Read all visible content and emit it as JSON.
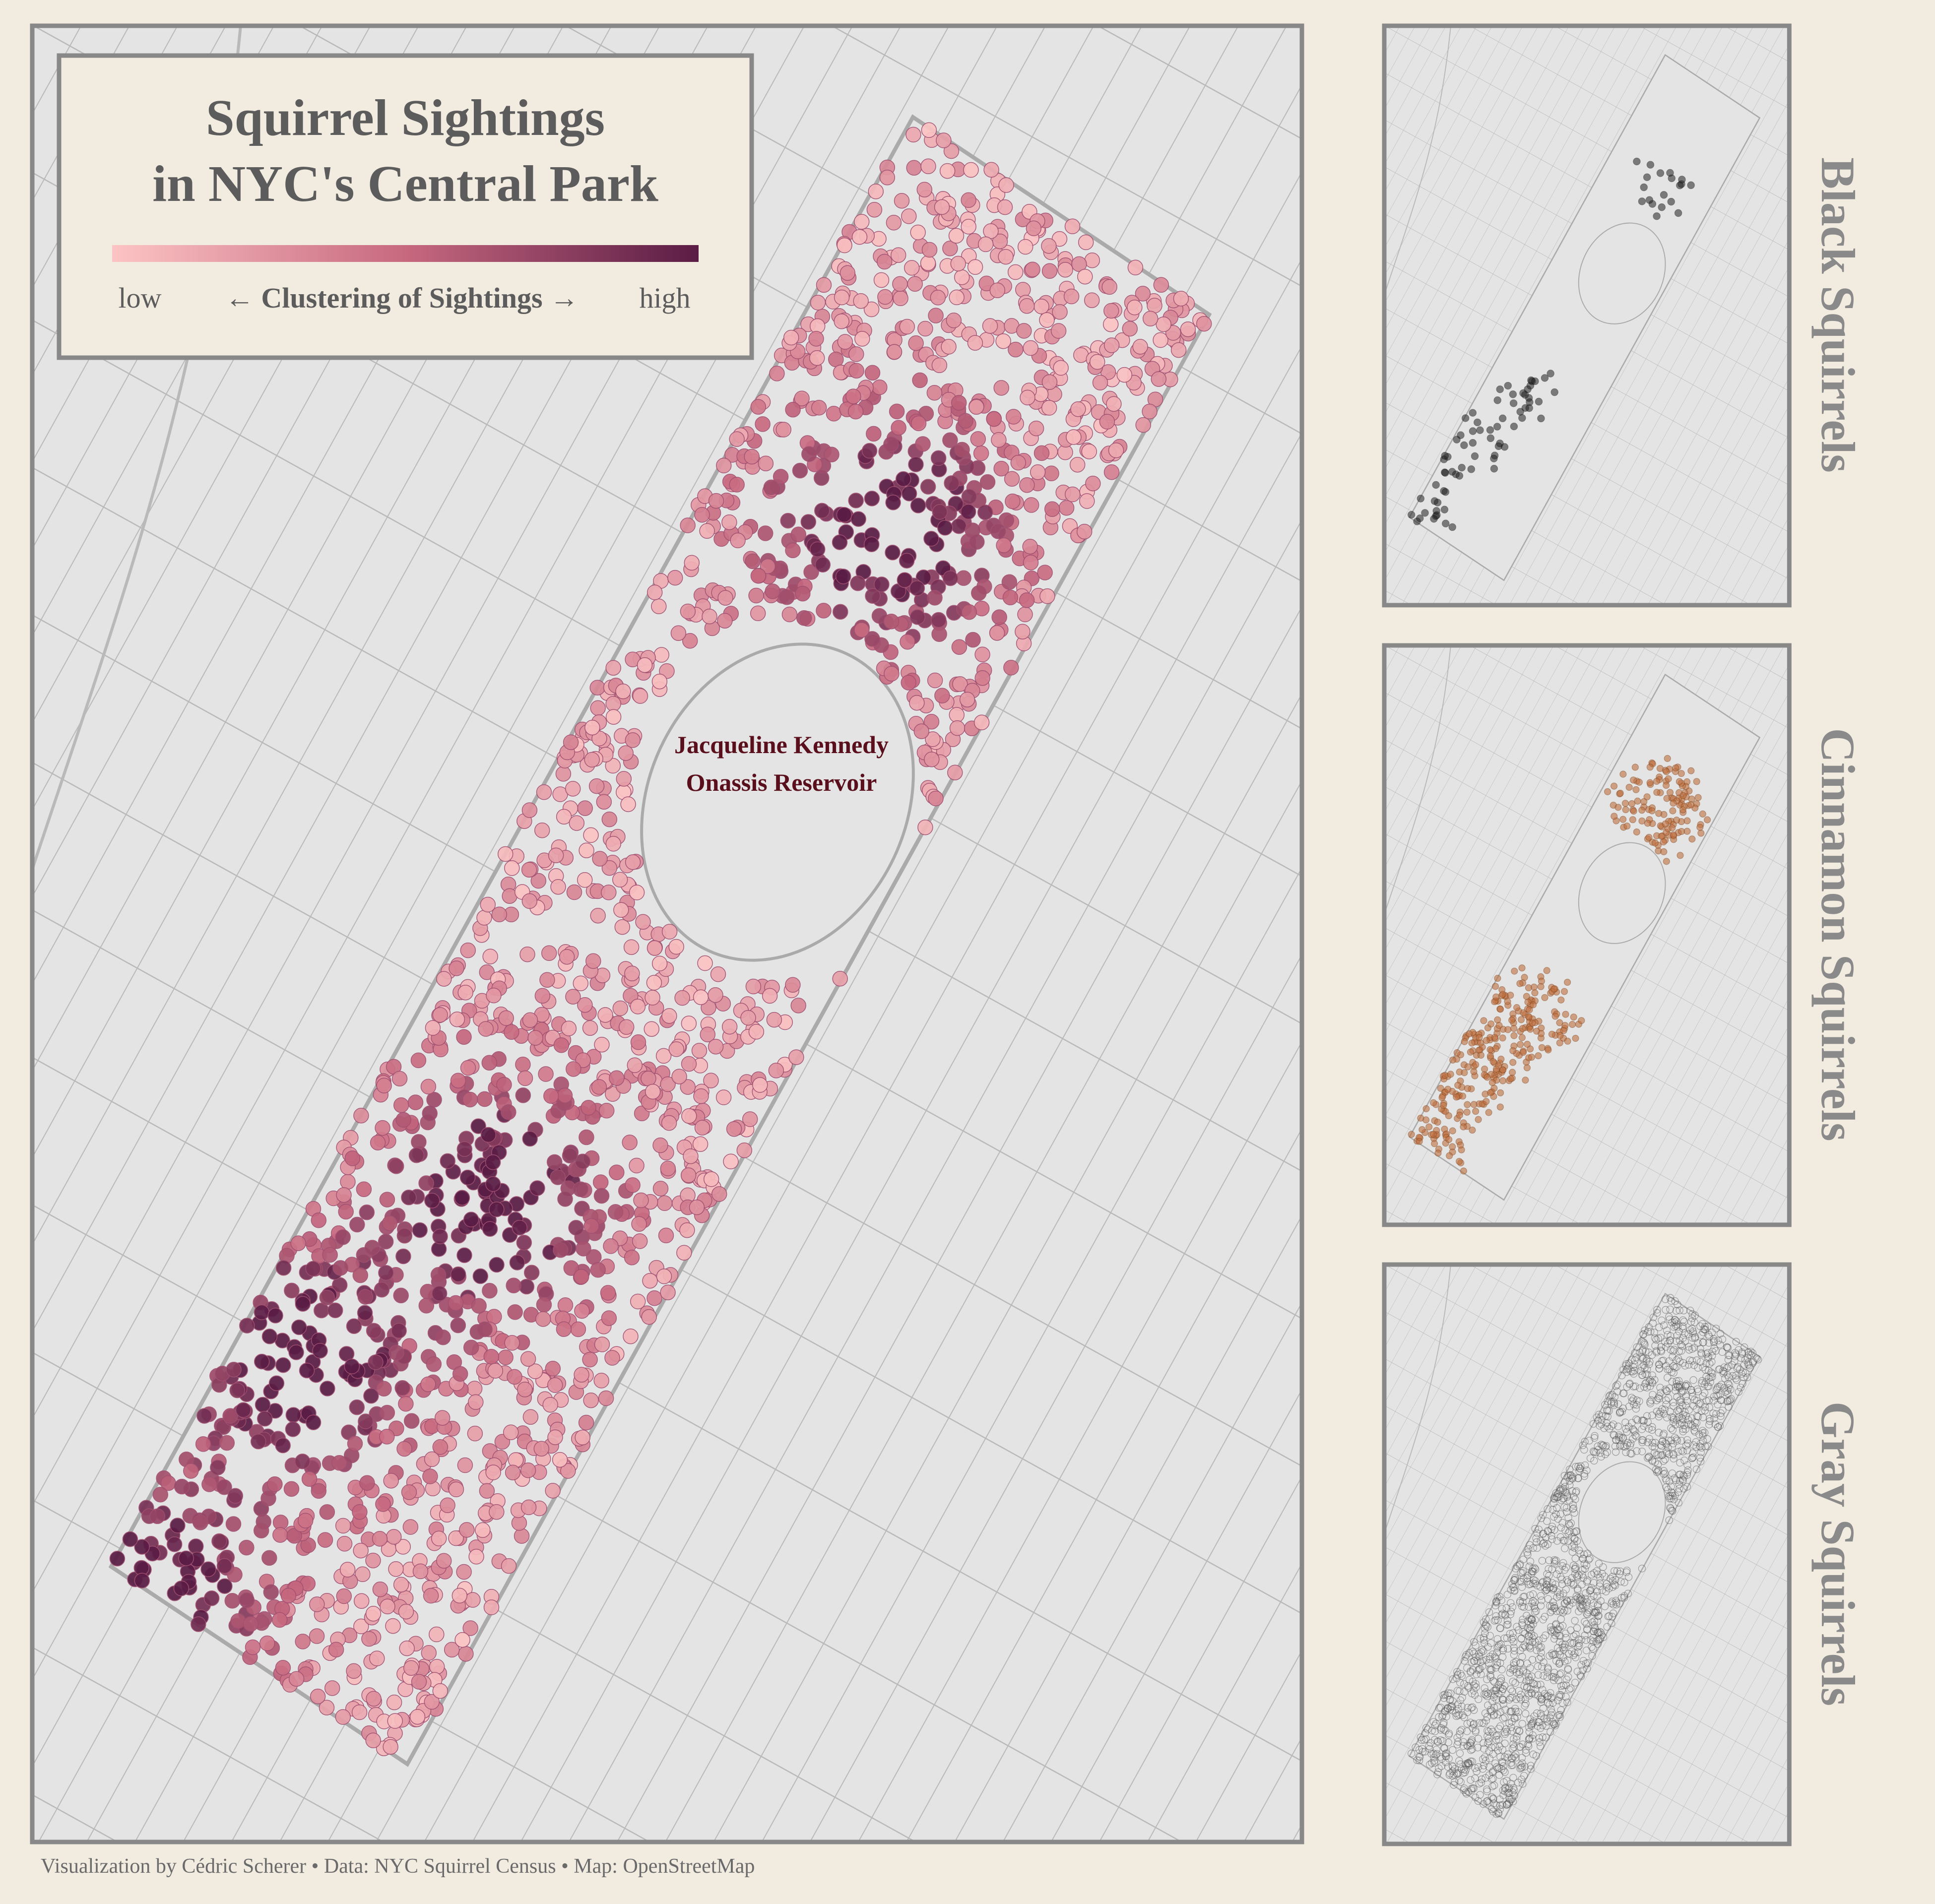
{
  "header": {
    "title": [
      "Squirrel Sightings",
      "in NYC's Central Park"
    ]
  },
  "legend": {
    "low": "low",
    "label": "← Clustering of Sightings →",
    "high": "high"
  },
  "annotation": [
    "Jacqueline Kennedy",
    "Onassis Reservoir"
  ],
  "panels": [
    "Black Squirrels",
    "Cinnamon Squirrels",
    "Gray Squirrels"
  ],
  "caption": "Visualization by Cédric Scherer • Data: NYC Squirrel Census • Map: OpenStreetMap"
}
